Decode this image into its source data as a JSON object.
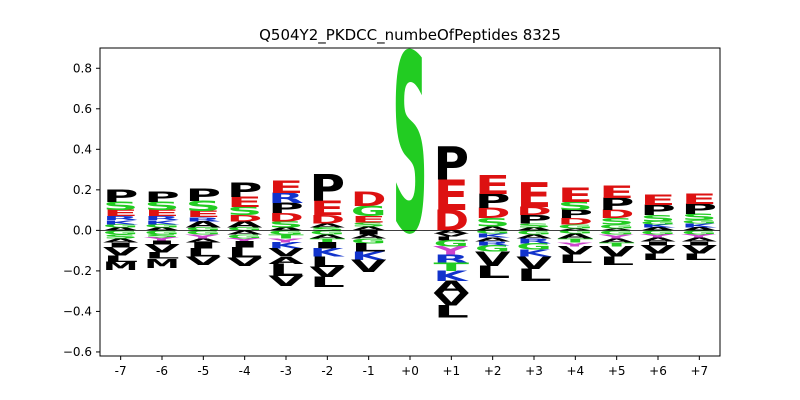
{
  "chart_data": {
    "type": "sequence-logo",
    "title": "Q504Y2_PKDCC_numbeOfPeptides 8325",
    "xlabel": "",
    "ylabel": "",
    "ylim": [
      -0.62,
      0.9
    ],
    "yticks": [
      -0.6,
      -0.4,
      -0.2,
      0.0,
      0.2,
      0.4,
      0.6,
      0.8
    ],
    "ytick_labels": [
      "−0.6",
      "−0.4",
      "−0.2",
      "0.0",
      "0.2",
      "0.4",
      "0.6",
      "0.8"
    ],
    "positions": [
      "-7",
      "-6",
      "-5",
      "-4",
      "-3",
      "-2",
      "-1",
      "+0",
      "+1",
      "+2",
      "+3",
      "+4",
      "+5",
      "+6",
      "+7"
    ],
    "colors": {
      "acidic": "#dd1111",
      "basic": "#1133cc",
      "polar": "#22cc22",
      "aromatic": "#cc44cc",
      "hydrophobic": "#000000"
    },
    "residue_color_map": {
      "E": "acidic",
      "D": "acidic",
      "R": "basic",
      "K": "basic",
      "H": "basic",
      "S": "polar",
      "T": "polar",
      "G": "polar",
      "N": "polar",
      "Q": "polar",
      "C": "polar",
      "Y": "aromatic",
      "F": "aromatic",
      "W": "aromatic",
      "P": "hydrophobic",
      "A": "hydrophobic",
      "V": "hydrophobic",
      "L": "hydrophobic",
      "I": "hydrophobic",
      "M": "hydrophobic"
    },
    "stacks": [
      {
        "position": "-7",
        "positive": [
          [
            "A",
            0.015
          ],
          [
            "G",
            0.015
          ],
          [
            "K",
            0.02
          ],
          [
            "R",
            0.02
          ],
          [
            "E",
            0.03
          ],
          [
            "S",
            0.04
          ],
          [
            "P",
            0.06
          ]
        ],
        "negative": [
          [
            "G",
            0.02
          ],
          [
            "S",
            0.02
          ],
          [
            "A",
            0.02
          ],
          [
            "I",
            0.025
          ],
          [
            "V",
            0.04
          ],
          [
            "L",
            0.03
          ],
          [
            "M",
            0.04
          ]
        ]
      },
      {
        "position": "-6",
        "positive": [
          [
            "A",
            0.015
          ],
          [
            "G",
            0.015
          ],
          [
            "K",
            0.02
          ],
          [
            "R",
            0.02
          ],
          [
            "E",
            0.03
          ],
          [
            "S",
            0.04
          ],
          [
            "P",
            0.05
          ]
        ],
        "negative": [
          [
            "G",
            0.02
          ],
          [
            "S",
            0.015
          ],
          [
            "Y",
            0.015
          ],
          [
            "I",
            0.02
          ],
          [
            "V",
            0.04
          ],
          [
            "L",
            0.03
          ],
          [
            "M",
            0.045
          ]
        ]
      },
      {
        "position": "-5",
        "positive": [
          [
            "G",
            0.015
          ],
          [
            "A",
            0.03
          ],
          [
            "R",
            0.02
          ],
          [
            "E",
            0.03
          ],
          [
            "S",
            0.05
          ],
          [
            "P",
            0.06
          ]
        ],
        "negative": [
          [
            "G",
            0.02
          ],
          [
            "Y",
            0.02
          ],
          [
            "A",
            0.02
          ],
          [
            "I",
            0.03
          ],
          [
            "L",
            0.04
          ],
          [
            "V",
            0.04
          ]
        ]
      },
      {
        "position": "-4",
        "positive": [
          [
            "G",
            0.015
          ],
          [
            "A",
            0.03
          ],
          [
            "D",
            0.03
          ],
          [
            "S",
            0.04
          ],
          [
            "E",
            0.05
          ],
          [
            "P",
            0.07
          ]
        ],
        "negative": [
          [
            "A",
            0.02
          ],
          [
            "G",
            0.02
          ],
          [
            "Y",
            0.015
          ],
          [
            "I",
            0.03
          ],
          [
            "L",
            0.05
          ],
          [
            "V",
            0.04
          ]
        ]
      },
      {
        "position": "-3",
        "positive": [
          [
            "A",
            0.015
          ],
          [
            "S",
            0.03
          ],
          [
            "D",
            0.04
          ],
          [
            "P",
            0.05
          ],
          [
            "R",
            0.05
          ],
          [
            "E",
            0.06
          ]
        ],
        "negative": [
          [
            "G",
            0.02
          ],
          [
            "T",
            0.02
          ],
          [
            "Y",
            0.02
          ],
          [
            "K",
            0.03
          ],
          [
            "V",
            0.04
          ],
          [
            "A",
            0.035
          ],
          [
            "L",
            0.06
          ],
          [
            "V",
            0.05
          ]
        ]
      },
      {
        "position": "-2",
        "positive": [
          [
            "S",
            0.015
          ],
          [
            "A",
            0.02
          ],
          [
            "D",
            0.04
          ],
          [
            "E",
            0.07
          ],
          [
            "P",
            0.13
          ]
        ],
        "negative": [
          [
            "G",
            0.02
          ],
          [
            "A",
            0.02
          ],
          [
            "T",
            0.02
          ],
          [
            "I",
            0.03
          ],
          [
            "K",
            0.04
          ],
          [
            "L",
            0.05
          ],
          [
            "V",
            0.05
          ],
          [
            "L",
            0.05
          ]
        ]
      },
      {
        "position": "-1",
        "positive": [
          [
            "A",
            0.02
          ],
          [
            "S",
            0.02
          ],
          [
            "E",
            0.03
          ],
          [
            "G",
            0.05
          ],
          [
            "D",
            0.07
          ]
        ],
        "negative": [
          [
            "I",
            0.02
          ],
          [
            "A",
            0.02
          ],
          [
            "G",
            0.025
          ],
          [
            "L",
            0.04
          ],
          [
            "K",
            0.04
          ],
          [
            "V",
            0.06
          ]
        ]
      },
      {
        "position": "+0",
        "positive": [
          [
            "S",
            0.87
          ]
        ],
        "negative": []
      },
      {
        "position": "+1",
        "positive": [
          [
            "D",
            0.1
          ],
          [
            "E",
            0.15
          ],
          [
            "P",
            0.16
          ]
        ],
        "negative": [
          [
            "A",
            0.015
          ],
          [
            "V",
            0.015
          ],
          [
            "L",
            0.02
          ],
          [
            "G",
            0.03
          ],
          [
            "Y",
            0.04
          ],
          [
            "R",
            0.04
          ],
          [
            "T",
            0.04
          ],
          [
            "K",
            0.05
          ],
          [
            "A",
            0.06
          ],
          [
            "V",
            0.06
          ],
          [
            "L",
            0.06
          ]
        ]
      },
      {
        "position": "+2",
        "positive": [
          [
            "A",
            0.02
          ],
          [
            "S",
            0.04
          ],
          [
            "D",
            0.05
          ],
          [
            "P",
            0.07
          ],
          [
            "E",
            0.09
          ]
        ],
        "negative": [
          [
            "G",
            0.015
          ],
          [
            "K",
            0.02
          ],
          [
            "A",
            0.02
          ],
          [
            "R",
            0.02
          ],
          [
            "G",
            0.03
          ],
          [
            "V",
            0.07
          ],
          [
            "L",
            0.06
          ]
        ]
      },
      {
        "position": "+3",
        "positive": [
          [
            "A",
            0.015
          ],
          [
            "S",
            0.02
          ],
          [
            "P",
            0.04
          ],
          [
            "D",
            0.04
          ],
          [
            "E",
            0.12
          ]
        ],
        "negative": [
          [
            "G",
            0.02
          ],
          [
            "A",
            0.02
          ],
          [
            "R",
            0.025
          ],
          [
            "G",
            0.03
          ],
          [
            "K",
            0.035
          ],
          [
            "V",
            0.06
          ],
          [
            "L",
            0.06
          ]
        ]
      },
      {
        "position": "+4",
        "positive": [
          [
            "A",
            0.01
          ],
          [
            "G",
            0.02
          ],
          [
            "D",
            0.03
          ],
          [
            "P",
            0.04
          ],
          [
            "S",
            0.04
          ],
          [
            "E",
            0.07
          ]
        ],
        "negative": [
          [
            "G",
            0.015
          ],
          [
            "A",
            0.025
          ],
          [
            "T",
            0.02
          ],
          [
            "Y",
            0.02
          ],
          [
            "V",
            0.04
          ],
          [
            "L",
            0.04
          ]
        ]
      },
      {
        "position": "+5",
        "positive": [
          [
            "A",
            0.01
          ],
          [
            "G",
            0.02
          ],
          [
            "S",
            0.03
          ],
          [
            "D",
            0.04
          ],
          [
            "P",
            0.06
          ],
          [
            "E",
            0.06
          ]
        ],
        "negative": [
          [
            "G",
            0.02
          ],
          [
            "Y",
            0.02
          ],
          [
            "A",
            0.02
          ],
          [
            "T",
            0.02
          ],
          [
            "V",
            0.05
          ],
          [
            "L",
            0.04
          ]
        ]
      },
      {
        "position": "+6",
        "positive": [
          [
            "A",
            0.015
          ],
          [
            "K",
            0.015
          ],
          [
            "G",
            0.015
          ],
          [
            "S",
            0.03
          ],
          [
            "P",
            0.05
          ],
          [
            "E",
            0.05
          ]
        ],
        "negative": [
          [
            "G",
            0.02
          ],
          [
            "Y",
            0.015
          ],
          [
            "A",
            0.02
          ],
          [
            "I",
            0.02
          ],
          [
            "V",
            0.04
          ],
          [
            "L",
            0.03
          ]
        ]
      },
      {
        "position": "+7",
        "positive": [
          [
            "A",
            0.015
          ],
          [
            "K",
            0.02
          ],
          [
            "G",
            0.015
          ],
          [
            "S",
            0.03
          ],
          [
            "P",
            0.05
          ],
          [
            "E",
            0.05
          ]
        ],
        "negative": [
          [
            "G",
            0.02
          ],
          [
            "Y",
            0.015
          ],
          [
            "A",
            0.02
          ],
          [
            "I",
            0.02
          ],
          [
            "V",
            0.04
          ],
          [
            "L",
            0.03
          ]
        ]
      }
    ]
  }
}
